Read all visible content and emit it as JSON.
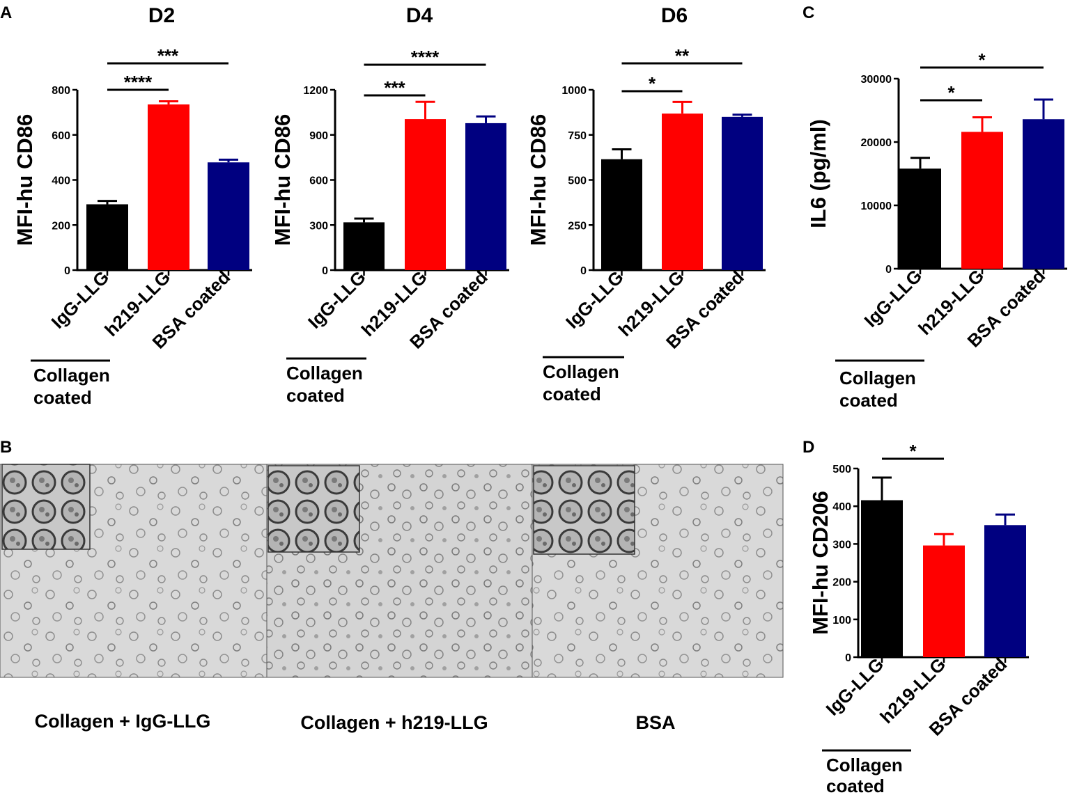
{
  "panels": {
    "A": "A",
    "B": "B",
    "C": "C",
    "D": "D"
  },
  "colors": {
    "IgG-LLG": "#000000",
    "h219-LLG": "#ff0000",
    "BSA coated": "#000080"
  },
  "group_label": [
    "Collagen",
    "coated"
  ],
  "chart_data": [
    {
      "type": "bar",
      "title": "D2",
      "ylabel": "MFI-hu CD86",
      "categories": [
        "IgG-LLG",
        "h219-LLG",
        "BSA coated"
      ],
      "values": [
        292,
        735,
        478
      ],
      "errors": [
        15,
        14,
        12
      ],
      "ylim": [
        0,
        800
      ],
      "yticks": [
        0,
        200,
        400,
        600,
        800
      ],
      "significance": [
        {
          "from": 0,
          "to": 1,
          "label": "****"
        },
        {
          "from": 0,
          "to": 2,
          "label": "***"
        }
      ]
    },
    {
      "type": "bar",
      "title": "D4",
      "ylabel": "MFI-hu CD86",
      "categories": [
        "IgG-LLG",
        "h219-LLG",
        "BSA coated"
      ],
      "values": [
        318,
        1005,
        978
      ],
      "errors": [
        25,
        115,
        45
      ],
      "ylim": [
        0,
        1200
      ],
      "yticks": [
        0,
        300,
        600,
        900,
        1200
      ],
      "significance": [
        {
          "from": 0,
          "to": 1,
          "label": "***"
        },
        {
          "from": 0,
          "to": 2,
          "label": "****"
        }
      ]
    },
    {
      "type": "bar",
      "title": "D6",
      "ylabel": "MFI-hu CD86",
      "categories": [
        "IgG-LLG",
        "h219-LLG",
        "BSA coated"
      ],
      "values": [
        615,
        868,
        850
      ],
      "errors": [
        55,
        65,
        12
      ],
      "ylim": [
        0,
        1000
      ],
      "yticks": [
        0,
        250,
        500,
        750,
        1000
      ],
      "significance": [
        {
          "from": 0,
          "to": 1,
          "label": "*"
        },
        {
          "from": 0,
          "to": 2,
          "label": "**"
        }
      ]
    },
    {
      "type": "bar",
      "title": "",
      "ylabel": "IL6 (pg/ml)",
      "categories": [
        "IgG-LLG",
        "h219-LLG",
        "BSA coated"
      ],
      "values": [
        15800,
        21600,
        23600
      ],
      "errors": [
        1700,
        2300,
        3100
      ],
      "ylim": [
        0,
        30000
      ],
      "yticks": [
        0,
        10000,
        20000,
        30000
      ],
      "significance": [
        {
          "from": 0,
          "to": 1,
          "label": "*"
        },
        {
          "from": 0,
          "to": 2,
          "label": "*"
        }
      ]
    },
    {
      "type": "bar",
      "title": "",
      "ylabel": "MFI-hu CD206",
      "categories": [
        "IgG-LLG",
        "h219-LLG",
        "BSA coated"
      ],
      "values": [
        416,
        296,
        350
      ],
      "errors": [
        60,
        30,
        28
      ],
      "ylim": [
        0,
        500
      ],
      "yticks": [
        0,
        100,
        200,
        300,
        400,
        500
      ],
      "significance": [
        {
          "from": 0,
          "to": 1,
          "label": "*"
        }
      ]
    }
  ],
  "micrographs": {
    "captions": [
      "Collagen + IgG-LLG",
      "Collagen + h219-LLG",
      "BSA"
    ]
  }
}
